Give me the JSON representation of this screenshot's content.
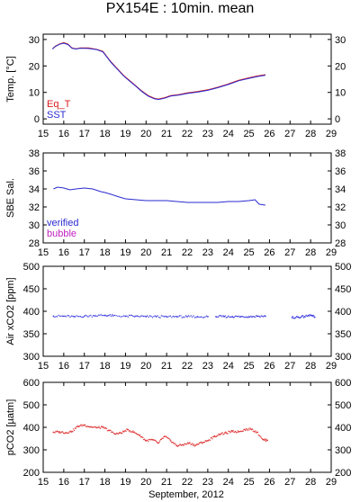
{
  "title": "PX154E : 10min. mean",
  "xlabel": "September, 2012",
  "colors": {
    "eq_t": "#d81b1b",
    "sst": "#2a2ad0",
    "verified": "#2a2ad0",
    "bubble": "#c020c0",
    "air": "#3a3ae0",
    "pco2": "#e04040"
  },
  "chart_data": [
    {
      "type": "line",
      "ylabel": "Temp. [°C]",
      "ylim": [
        -2,
        32
      ],
      "yticks": [
        0,
        10,
        20,
        30
      ],
      "xlim": [
        15,
        29
      ],
      "xticks": [
        15,
        16,
        17,
        18,
        19,
        20,
        21,
        22,
        23,
        24,
        25,
        26,
        27,
        28,
        29
      ],
      "legend": [
        "Eq_T",
        "SST"
      ],
      "legend_position": "bottom-left",
      "series": [
        {
          "name": "Eq_T",
          "color": "#d81b1b",
          "x": [
            15.45,
            15.6,
            15.8,
            16.0,
            16.2,
            16.4,
            16.6,
            16.8,
            17.2,
            17.6,
            17.9,
            18.1,
            18.3,
            18.6,
            18.9,
            19.2,
            19.5,
            19.8,
            20.1,
            20.4,
            20.6,
            20.9,
            21.2,
            21.6,
            22.0,
            22.5,
            23.0,
            23.5,
            24.0,
            24.5,
            25.0,
            25.4,
            25.8
          ],
          "y": [
            26.5,
            27.5,
            28.3,
            28.8,
            28.3,
            26.8,
            26.5,
            26.8,
            26.8,
            26.3,
            25.5,
            23.5,
            21.5,
            19.0,
            16.5,
            14.5,
            12.5,
            10.5,
            8.8,
            7.8,
            7.5,
            8.0,
            8.8,
            9.2,
            9.8,
            10.3,
            11.0,
            12.0,
            13.2,
            14.6,
            15.5,
            16.2,
            16.7
          ]
        },
        {
          "name": "SST",
          "color": "#2a2ad0",
          "x": [
            15.45,
            15.6,
            15.8,
            16.0,
            16.2,
            16.4,
            16.6,
            16.8,
            17.2,
            17.6,
            17.9,
            18.1,
            18.3,
            18.6,
            18.9,
            19.2,
            19.5,
            19.8,
            20.1,
            20.4,
            20.6,
            20.9,
            21.2,
            21.6,
            22.0,
            22.5,
            23.0,
            23.5,
            24.0,
            24.5,
            25.0,
            25.4,
            25.8
          ],
          "y": [
            26.4,
            27.4,
            28.2,
            28.6,
            28.1,
            26.7,
            26.4,
            26.7,
            26.6,
            26.2,
            25.3,
            23.3,
            21.3,
            18.8,
            16.3,
            14.3,
            12.3,
            10.3,
            8.6,
            7.6,
            7.3,
            7.8,
            8.6,
            9.0,
            9.6,
            10.1,
            10.8,
            11.8,
            13.0,
            14.4,
            15.3,
            16.0,
            16.5
          ]
        }
      ]
    },
    {
      "type": "line",
      "ylabel": "SBE Sal.",
      "ylim": [
        28,
        38
      ],
      "yticks": [
        28,
        30,
        32,
        34,
        36,
        38
      ],
      "xlim": [
        15,
        29
      ],
      "xticks": [
        15,
        16,
        17,
        18,
        19,
        20,
        21,
        22,
        23,
        24,
        25,
        26,
        27,
        28,
        29
      ],
      "legend": [
        "verified",
        "bubble"
      ],
      "legend_position": "bottom-left",
      "series": [
        {
          "name": "verified",
          "color": "#2a2ad0",
          "x": [
            15.5,
            15.7,
            16.0,
            16.3,
            16.6,
            17.0,
            17.4,
            17.8,
            18.0,
            18.3,
            18.7,
            19.0,
            19.5,
            20.0,
            20.5,
            21.0,
            21.5,
            22.0,
            22.5,
            23.0,
            23.5,
            24.0,
            24.5,
            25.0,
            25.3,
            25.5,
            25.8
          ],
          "y": [
            34.0,
            34.2,
            34.1,
            33.9,
            34.0,
            34.1,
            34.0,
            33.7,
            33.6,
            33.4,
            33.1,
            32.9,
            32.8,
            32.7,
            32.7,
            32.7,
            32.6,
            32.5,
            32.5,
            32.5,
            32.5,
            32.6,
            32.6,
            32.7,
            32.8,
            32.3,
            32.2
          ]
        }
      ]
    },
    {
      "type": "scatter",
      "ylabel": "Air xCO2 [ppm]",
      "ylim": [
        300,
        500
      ],
      "yticks": [
        300,
        350,
        400,
        450,
        500
      ],
      "xlim": [
        15,
        29
      ],
      "xticks": [
        15,
        16,
        17,
        18,
        19,
        20,
        21,
        22,
        23,
        24,
        25,
        26,
        27,
        28,
        29
      ],
      "series": [
        {
          "name": "",
          "color": "#3a3ae0",
          "segments": [
            {
              "x": [
                15.5,
                16.0,
                16.5,
                17.0,
                17.5,
                18.0,
                18.4,
                19.0,
                19.5,
                20.0,
                20.5,
                21.0,
                21.5,
                22.0,
                22.5,
                23.0
              ],
              "y": [
                389,
                389,
                388,
                389,
                390,
                391,
                390,
                389,
                389,
                388,
                388,
                388,
                388,
                388,
                388,
                388
              ]
            },
            {
              "x": [
                23.4,
                23.8,
                24.2,
                24.6,
                25.0,
                25.4,
                25.8
              ],
              "y": [
                388,
                388,
                388,
                388,
                388,
                389,
                389
              ]
            },
            {
              "x": [
                27.1,
                27.4,
                27.7,
                28.0,
                28.2
              ],
              "y": [
                386,
                387,
                388,
                391,
                387
              ]
            }
          ]
        }
      ]
    },
    {
      "type": "scatter",
      "ylabel": "pCO2 [µatm]",
      "ylim": [
        200,
        600
      ],
      "yticks": [
        200,
        300,
        400,
        500,
        600
      ],
      "xlim": [
        15,
        29
      ],
      "xticks": [
        15,
        16,
        17,
        18,
        19,
        20,
        21,
        22,
        23,
        24,
        25,
        26,
        27,
        28,
        29
      ],
      "series": [
        {
          "name": "",
          "color": "#e04040",
          "x": [
            15.5,
            15.8,
            16.1,
            16.4,
            16.7,
            17.0,
            17.3,
            17.6,
            17.9,
            18.2,
            18.5,
            18.8,
            19.1,
            19.4,
            19.7,
            20.0,
            20.3,
            20.6,
            20.9,
            21.2,
            21.5,
            21.8,
            22.1,
            22.4,
            22.7,
            23.0,
            23.3,
            23.6,
            23.9,
            24.2,
            24.5,
            24.8,
            25.1,
            25.4,
            25.7,
            25.9
          ],
          "y": [
            378,
            380,
            376,
            382,
            405,
            410,
            402,
            398,
            400,
            386,
            370,
            375,
            390,
            378,
            365,
            340,
            345,
            330,
            360,
            340,
            318,
            322,
            330,
            320,
            332,
            340,
            358,
            370,
            375,
            382,
            380,
            390,
            392,
            378,
            345,
            342
          ]
        }
      ]
    }
  ]
}
